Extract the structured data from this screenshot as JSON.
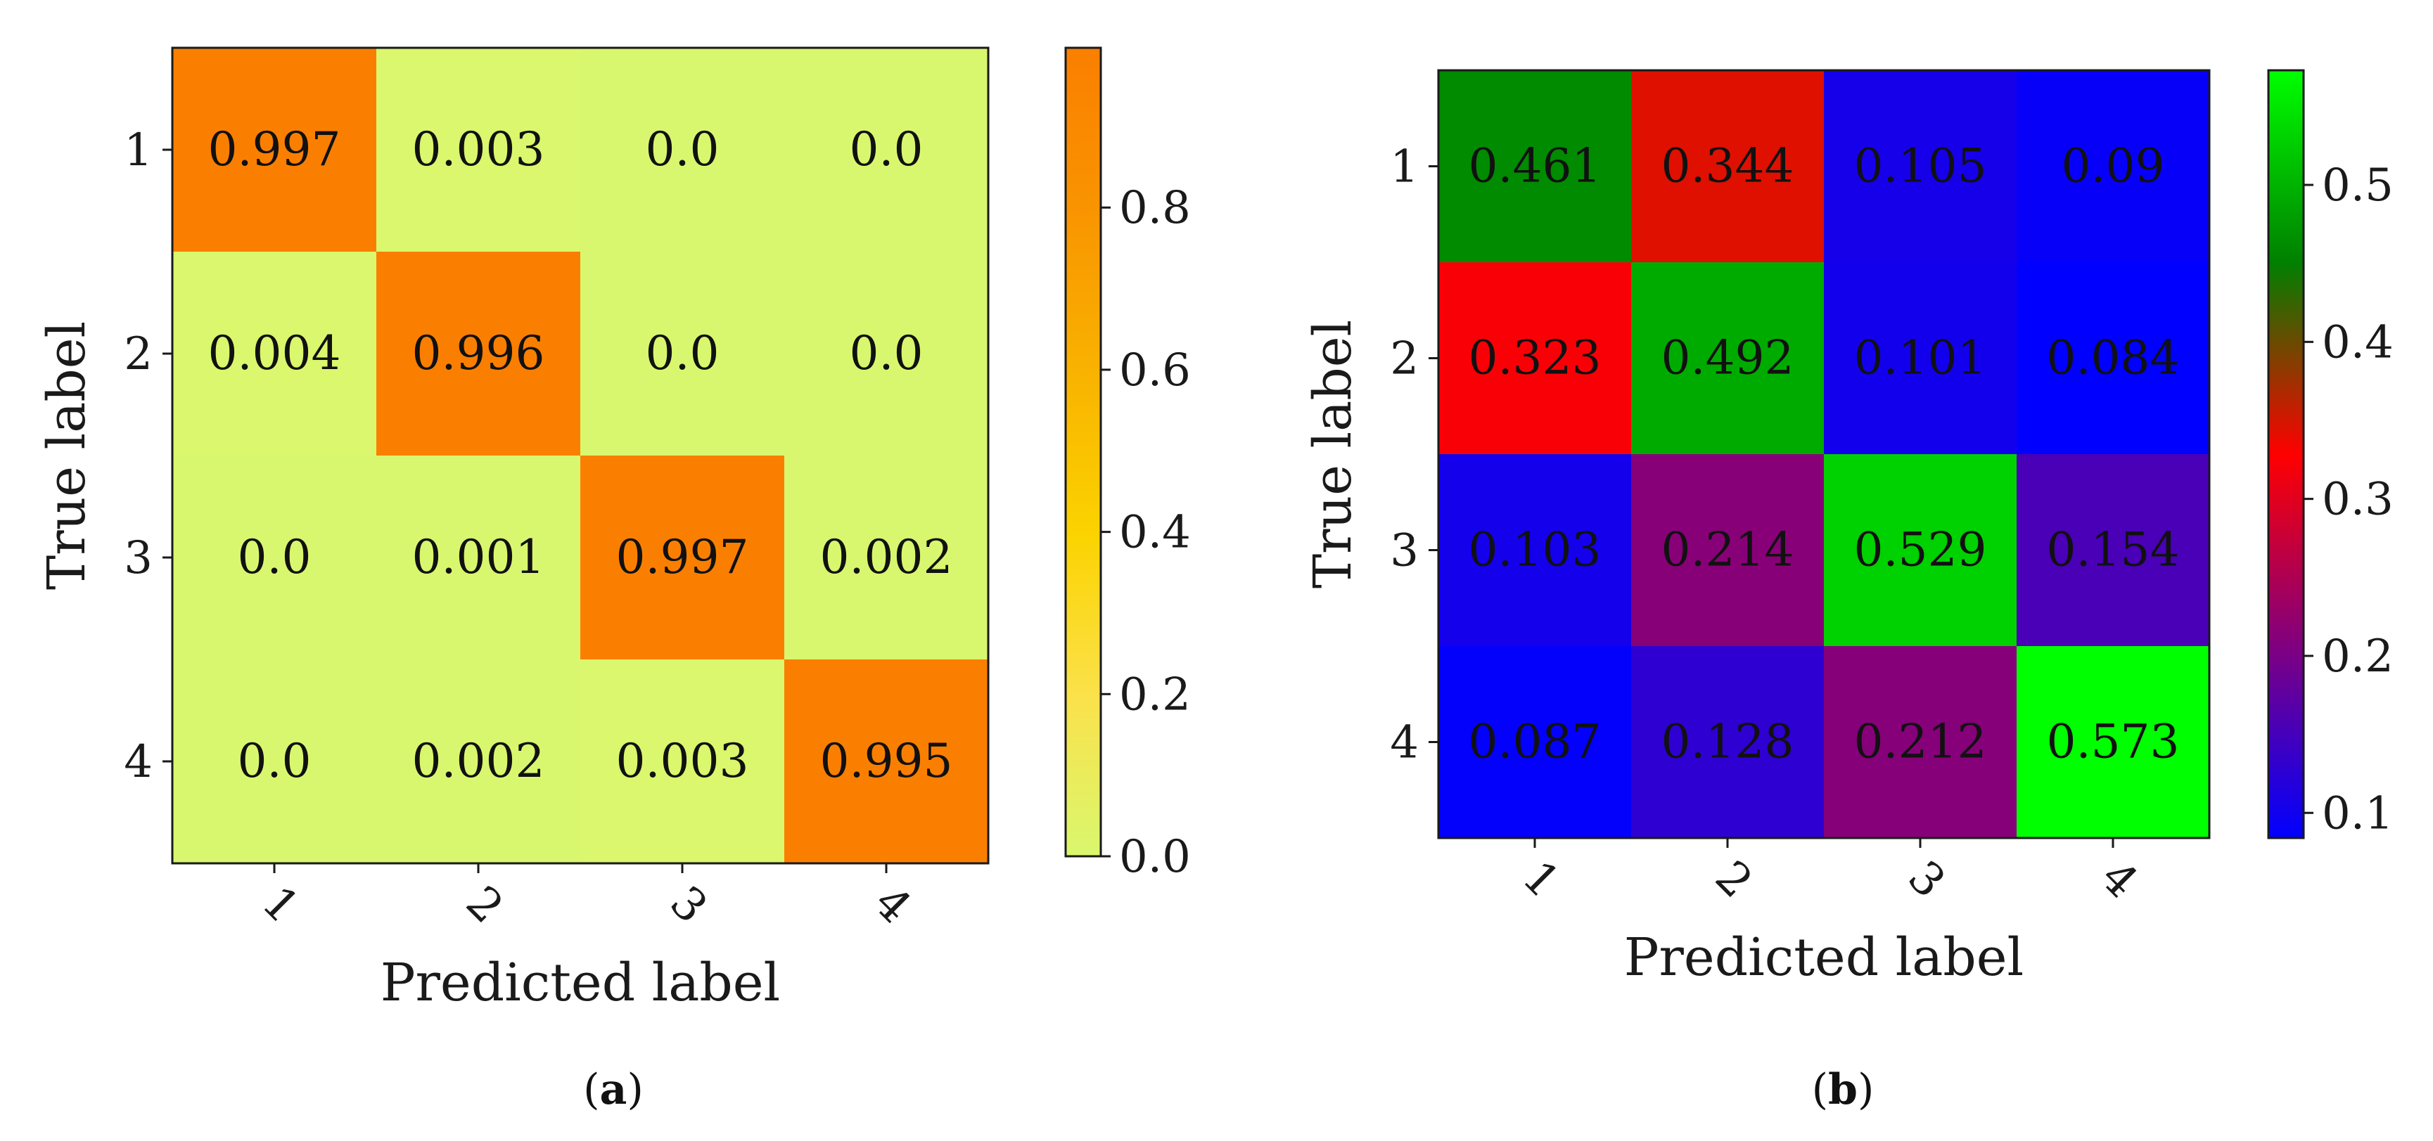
{
  "chart_data": [
    {
      "type": "heatmap",
      "panel": "a",
      "caption_letter": "a",
      "xlabel": "Predicted label",
      "ylabel": "True label",
      "x_ticks": [
        "1",
        "2",
        "3",
        "4"
      ],
      "y_ticks": [
        "1",
        "2",
        "3",
        "4"
      ],
      "values": [
        [
          "0.997",
          "0.003",
          "0.0",
          "0.0"
        ],
        [
          "0.004",
          "0.996",
          "0.0",
          "0.0"
        ],
        [
          "0.0",
          "0.001",
          "0.997",
          "0.002"
        ],
        [
          "0.0",
          "0.002",
          "0.003",
          "0.995"
        ]
      ],
      "colorbar": {
        "range": [
          0.0,
          0.997
        ],
        "ticks": [
          "0.0",
          "0.2",
          "0.4",
          "0.6",
          "0.8"
        ],
        "colors": [
          "#d9f76e",
          "#fbe14a",
          "#fbd300",
          "#f9b200",
          "#f99400",
          "#fa7f00"
        ]
      }
    },
    {
      "type": "heatmap",
      "panel": "b",
      "caption_letter": "b",
      "xlabel": "Predicted label",
      "ylabel": "True label",
      "x_ticks": [
        "1",
        "2",
        "3",
        "4"
      ],
      "y_ticks": [
        "1",
        "2",
        "3",
        "4"
      ],
      "values": [
        [
          "0.461",
          "0.344",
          "0.105",
          "0.09"
        ],
        [
          "0.323",
          "0.492",
          "0.101",
          "0.084"
        ],
        [
          "0.103",
          "0.214",
          "0.529",
          "0.154"
        ],
        [
          "0.087",
          "0.128",
          "0.212",
          "0.573"
        ]
      ],
      "colorbar": {
        "range": [
          0.084,
          0.573
        ],
        "ticks": [
          "0.1",
          "0.2",
          "0.3",
          "0.4",
          "0.5"
        ],
        "colors": [
          "#0000ff",
          "#800080",
          "#ff0000",
          "#008000",
          "#00ff00"
        ]
      }
    }
  ]
}
